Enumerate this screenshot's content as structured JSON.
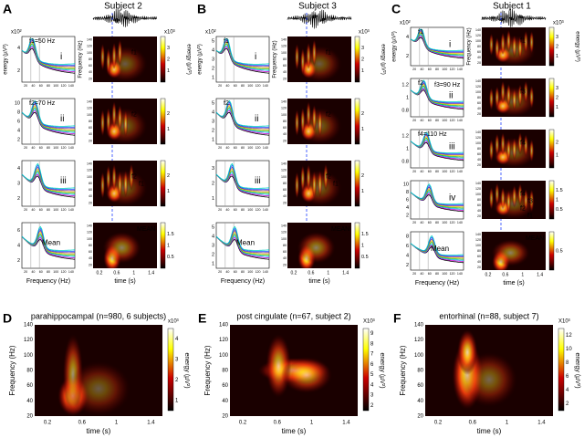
{
  "axis_labels": {
    "energy": "energy (µV²)",
    "frequency": "Frequency (Hz)",
    "time": "time (s)"
  },
  "freq_ticks": [
    "20",
    "40",
    "60",
    "80",
    "100",
    "120",
    "140"
  ],
  "time_ticks": [
    "0.2",
    "0.6",
    "1",
    "1.4"
  ],
  "panels": [
    {
      "letter": "A",
      "title": "Subject 2",
      "multiplier": "x10²",
      "spec_multiplier": "x10³",
      "rows": [
        {
          "label": "i",
          "notes": [
            "f1=50 Hz"
          ],
          "yticks": [
            "2",
            "4"
          ],
          "spec_notes": [
            "f1"
          ],
          "cb_ticks": [
            "1",
            "2",
            "3"
          ]
        },
        {
          "label": "ii",
          "notes": [
            "f2=70 Hz"
          ],
          "yticks": [
            "2",
            "4",
            "6",
            "8",
            "10"
          ],
          "spec_notes": [
            "f2"
          ],
          "cb_ticks": [
            "1",
            "2"
          ]
        },
        {
          "label": "iii",
          "notes": [],
          "yticks": [
            "2",
            "3",
            "4"
          ],
          "spec_notes": [
            "f2",
            "f1"
          ],
          "cb_ticks": [
            "1",
            "2"
          ]
        },
        {
          "label": "Mean",
          "notes": [],
          "yticks": [
            "2",
            "4",
            "6"
          ],
          "spec_notes": [
            "MEAN"
          ],
          "cb_ticks": [
            "0.5",
            "1",
            "1.5"
          ]
        }
      ]
    },
    {
      "letter": "B",
      "title": "Subject 3",
      "multiplier": "x10²",
      "spec_multiplier": "x10³",
      "rows": [
        {
          "label": "i",
          "notes": [
            "f1"
          ],
          "yticks": [
            "1",
            "2",
            "3",
            "4",
            "5"
          ],
          "spec_notes": [
            "f1"
          ],
          "cb_ticks": [
            "1",
            "2",
            "3"
          ]
        },
        {
          "label": "ii",
          "notes": [
            "f2"
          ],
          "yticks": [
            "1",
            "2",
            "3",
            "4",
            "5"
          ],
          "spec_notes": [
            "f2"
          ],
          "cb_ticks": [
            "1",
            "2"
          ]
        },
        {
          "label": "iii",
          "notes": [],
          "yticks": [
            "1",
            "2",
            "3"
          ],
          "spec_notes": [
            "f2",
            "f1"
          ],
          "cb_ticks": [
            "1",
            "2"
          ]
        },
        {
          "label": "Mean",
          "notes": [],
          "yticks": [
            "1",
            "2",
            "3",
            "4",
            "5"
          ],
          "spec_notes": [
            "MEAN"
          ],
          "cb_ticks": [
            "0.5",
            "1",
            "1.5"
          ]
        }
      ]
    },
    {
      "letter": "C",
      "title": "Subject 1",
      "multiplier": "x10²",
      "spec_multiplier": "x10³",
      "rows": [
        {
          "label": "i",
          "notes": [
            "f1"
          ],
          "yticks": [
            "2",
            "4"
          ],
          "spec_notes": [
            "f1"
          ],
          "cb_ticks": [
            "1",
            "2",
            "3"
          ]
        },
        {
          "label": "ii",
          "notes": [
            "f2",
            "f3=90 Hz"
          ],
          "yticks": [
            "0.8",
            "1",
            "1.2"
          ],
          "spec_notes": [
            "f3"
          ],
          "cb_ticks": [
            "1",
            "2",
            "3"
          ]
        },
        {
          "label": "iii",
          "notes": [
            "f4=110 Hz"
          ],
          "yticks": [
            "0.8",
            "1",
            "1.2"
          ],
          "spec_notes": [
            "f4"
          ],
          "cb_ticks": [
            "1",
            "2"
          ]
        },
        {
          "label": "iv",
          "notes": [],
          "yticks": [
            "2",
            "4",
            "6",
            "8",
            "10"
          ],
          "spec_notes": [
            "f4",
            "f3",
            "f2",
            "f1"
          ],
          "cb_ticks": [
            "0.5",
            "1",
            "1.5"
          ]
        },
        {
          "label": "Mean",
          "notes": [],
          "yticks": [
            "2",
            "4",
            "6",
            "8"
          ],
          "spec_notes": [
            "MEAN"
          ],
          "cb_ticks": [
            "0.5"
          ]
        }
      ]
    }
  ],
  "bottom_panels": [
    {
      "letter": "D",
      "title": "parahippocampal (n=980, 6 subjects)",
      "multiplier": "x10³",
      "cb_ticks": [
        "1",
        "2",
        "3",
        "4"
      ]
    },
    {
      "letter": "E",
      "title": "post cingulate (n=67, subject 2)",
      "multiplier": "X10³",
      "cb_ticks": [
        "2",
        "3",
        "4",
        "5",
        "6",
        "7",
        "8",
        "9"
      ]
    },
    {
      "letter": "F",
      "title": "entorhinal (n=88, subject 7)",
      "multiplier": "X10³",
      "cb_ticks": [
        "2",
        "4",
        "6",
        "8",
        "10",
        "12"
      ]
    }
  ]
}
